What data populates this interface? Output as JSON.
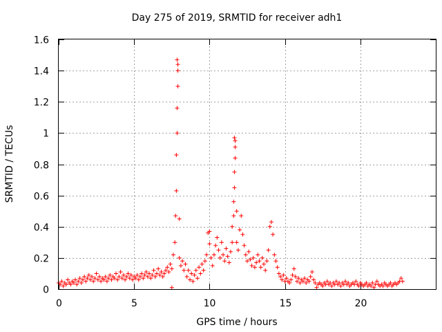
{
  "chart_data": {
    "type": "scatter",
    "title": "Day 275 of 2019, SRMTID for receiver adh1",
    "xlabel": "GPS time / hours",
    "ylabel": "SRMTID / TECUs",
    "xlim": [
      0,
      25
    ],
    "ylim": [
      0,
      1.6
    ],
    "xticks": [
      0,
      5,
      10,
      15,
      20
    ],
    "yticks": [
      0,
      0.2,
      0.4,
      0.6,
      0.8,
      1,
      1.2,
      1.4,
      1.6
    ],
    "grid": true,
    "marker": "+",
    "color": "#ff0000",
    "series": [
      {
        "name": "adh1",
        "points": [
          [
            0.0,
            0.04
          ],
          [
            0.1,
            0.03
          ],
          [
            0.2,
            0.05
          ],
          [
            0.3,
            0.02
          ],
          [
            0.4,
            0.04
          ],
          [
            0.5,
            0.03
          ],
          [
            0.6,
            0.06
          ],
          [
            0.7,
            0.04
          ],
          [
            0.8,
            0.03
          ],
          [
            0.9,
            0.05
          ],
          [
            1.0,
            0.04
          ],
          [
            1.1,
            0.06
          ],
          [
            1.2,
            0.03
          ],
          [
            1.3,
            0.05
          ],
          [
            1.4,
            0.07
          ],
          [
            1.5,
            0.04
          ],
          [
            1.6,
            0.06
          ],
          [
            1.7,
            0.08
          ],
          [
            1.8,
            0.05
          ],
          [
            1.9,
            0.07
          ],
          [
            2.0,
            0.09
          ],
          [
            2.1,
            0.06
          ],
          [
            2.2,
            0.08
          ],
          [
            2.3,
            0.05
          ],
          [
            2.4,
            0.07
          ],
          [
            2.5,
            0.1
          ],
          [
            2.6,
            0.06
          ],
          [
            2.7,
            0.08
          ],
          [
            2.8,
            0.05
          ],
          [
            2.9,
            0.07
          ],
          [
            3.0,
            0.06
          ],
          [
            3.1,
            0.08
          ],
          [
            3.2,
            0.05
          ],
          [
            3.3,
            0.07
          ],
          [
            3.4,
            0.09
          ],
          [
            3.5,
            0.06
          ],
          [
            3.6,
            0.08
          ],
          [
            3.7,
            0.07
          ],
          [
            3.8,
            0.1
          ],
          [
            3.9,
            0.06
          ],
          [
            4.0,
            0.08
          ],
          [
            4.1,
            0.11
          ],
          [
            4.2,
            0.07
          ],
          [
            4.3,
            0.09
          ],
          [
            4.4,
            0.06
          ],
          [
            4.5,
            0.08
          ],
          [
            4.6,
            0.1
          ],
          [
            4.7,
            0.07
          ],
          [
            4.8,
            0.09
          ],
          [
            4.9,
            0.06
          ],
          [
            5.0,
            0.08
          ],
          [
            5.1,
            0.07
          ],
          [
            5.2,
            0.09
          ],
          [
            5.3,
            0.06
          ],
          [
            5.4,
            0.08
          ],
          [
            5.5,
            0.1
          ],
          [
            5.6,
            0.07
          ],
          [
            5.7,
            0.09
          ],
          [
            5.8,
            0.11
          ],
          [
            5.9,
            0.08
          ],
          [
            6.0,
            0.1
          ],
          [
            6.1,
            0.07
          ],
          [
            6.2,
            0.09
          ],
          [
            6.3,
            0.12
          ],
          [
            6.4,
            0.08
          ],
          [
            6.5,
            0.1
          ],
          [
            6.6,
            0.13
          ],
          [
            6.7,
            0.09
          ],
          [
            6.8,
            0.11
          ],
          [
            6.9,
            0.08
          ],
          [
            7.0,
            0.1
          ],
          [
            7.1,
            0.12
          ],
          [
            7.2,
            0.14
          ],
          [
            7.3,
            0.11
          ],
          [
            7.4,
            0.16
          ],
          [
            7.5,
            0.13
          ],
          [
            7.5,
            0.01
          ],
          [
            7.6,
            0.22
          ],
          [
            7.7,
            0.3
          ],
          [
            7.75,
            0.47
          ],
          [
            7.8,
            0.63
          ],
          [
            7.8,
            0.86
          ],
          [
            7.85,
            1.0
          ],
          [
            7.85,
            1.16
          ],
          [
            7.9,
            1.3
          ],
          [
            7.9,
            1.4
          ],
          [
            7.85,
            1.47
          ],
          [
            7.9,
            1.44
          ],
          [
            8.0,
            0.45
          ],
          [
            8.0,
            0.2
          ],
          [
            8.1,
            0.15
          ],
          [
            8.2,
            0.18
          ],
          [
            8.3,
            0.12
          ],
          [
            8.4,
            0.16
          ],
          [
            8.5,
            0.08
          ],
          [
            8.6,
            0.12
          ],
          [
            8.7,
            0.06
          ],
          [
            8.8,
            0.1
          ],
          [
            8.9,
            0.05
          ],
          [
            9.0,
            0.09
          ],
          [
            9.1,
            0.12
          ],
          [
            9.2,
            0.07
          ],
          [
            9.3,
            0.14
          ],
          [
            9.4,
            0.1
          ],
          [
            9.5,
            0.16
          ],
          [
            9.6,
            0.12
          ],
          [
            9.7,
            0.18
          ],
          [
            9.8,
            0.22
          ],
          [
            9.9,
            0.36
          ],
          [
            10.0,
            0.37
          ],
          [
            10.0,
            0.29
          ],
          [
            10.1,
            0.2
          ],
          [
            10.2,
            0.15
          ],
          [
            10.3,
            0.22
          ],
          [
            10.4,
            0.28
          ],
          [
            10.5,
            0.33
          ],
          [
            10.6,
            0.25
          ],
          [
            10.7,
            0.2
          ],
          [
            10.8,
            0.3
          ],
          [
            10.9,
            0.22
          ],
          [
            11.0,
            0.18
          ],
          [
            11.1,
            0.26
          ],
          [
            11.2,
            0.21
          ],
          [
            11.3,
            0.17
          ],
          [
            11.4,
            0.24
          ],
          [
            11.5,
            0.3
          ],
          [
            11.5,
            0.4
          ],
          [
            11.6,
            0.47
          ],
          [
            11.6,
            0.56
          ],
          [
            11.65,
            0.65
          ],
          [
            11.65,
            0.75
          ],
          [
            11.7,
            0.84
          ],
          [
            11.7,
            0.91
          ],
          [
            11.65,
            0.97
          ],
          [
            11.7,
            0.95
          ],
          [
            11.8,
            0.5
          ],
          [
            11.8,
            0.3
          ],
          [
            11.9,
            0.25
          ],
          [
            12.0,
            0.38
          ],
          [
            12.1,
            0.47
          ],
          [
            12.2,
            0.35
          ],
          [
            12.3,
            0.28
          ],
          [
            12.4,
            0.22
          ],
          [
            12.5,
            0.18
          ],
          [
            12.6,
            0.24
          ],
          [
            12.7,
            0.19
          ],
          [
            12.8,
            0.15
          ],
          [
            12.9,
            0.2
          ],
          [
            13.0,
            0.14
          ],
          [
            13.1,
            0.17
          ],
          [
            13.2,
            0.22
          ],
          [
            13.3,
            0.18
          ],
          [
            13.4,
            0.14
          ],
          [
            13.5,
            0.2
          ],
          [
            13.6,
            0.16
          ],
          [
            13.7,
            0.12
          ],
          [
            13.8,
            0.18
          ],
          [
            13.9,
            0.25
          ],
          [
            14.0,
            0.4
          ],
          [
            14.1,
            0.43
          ],
          [
            14.2,
            0.35
          ],
          [
            14.3,
            0.22
          ],
          [
            14.4,
            0.18
          ],
          [
            14.5,
            0.14
          ],
          [
            14.6,
            0.1
          ],
          [
            14.7,
            0.08
          ],
          [
            14.8,
            0.06
          ],
          [
            14.9,
            0.09
          ],
          [
            15.0,
            0.05
          ],
          [
            15.1,
            0.07
          ],
          [
            15.2,
            0.05
          ],
          [
            15.3,
            0.04
          ],
          [
            15.4,
            0.06
          ],
          [
            15.5,
            0.09
          ],
          [
            15.6,
            0.13
          ],
          [
            15.7,
            0.08
          ],
          [
            15.8,
            0.05
          ],
          [
            15.9,
            0.07
          ],
          [
            16.0,
            0.04
          ],
          [
            16.1,
            0.06
          ],
          [
            16.2,
            0.05
          ],
          [
            16.3,
            0.07
          ],
          [
            16.4,
            0.04
          ],
          [
            16.5,
            0.06
          ],
          [
            16.6,
            0.05
          ],
          [
            16.7,
            0.08
          ],
          [
            16.8,
            0.11
          ],
          [
            16.9,
            0.06
          ],
          [
            17.0,
            0.04
          ],
          [
            17.1,
            0.01
          ],
          [
            17.2,
            0.03
          ],
          [
            17.3,
            0.04
          ],
          [
            17.4,
            0.03
          ],
          [
            17.5,
            0.02
          ],
          [
            17.6,
            0.04
          ],
          [
            17.7,
            0.03
          ],
          [
            17.8,
            0.05
          ],
          [
            17.9,
            0.03
          ],
          [
            18.0,
            0.04
          ],
          [
            18.1,
            0.02
          ],
          [
            18.2,
            0.04
          ],
          [
            18.3,
            0.03
          ],
          [
            18.4,
            0.05
          ],
          [
            18.5,
            0.03
          ],
          [
            18.6,
            0.04
          ],
          [
            18.7,
            0.02
          ],
          [
            18.8,
            0.04
          ],
          [
            18.9,
            0.03
          ],
          [
            19.0,
            0.05
          ],
          [
            19.1,
            0.03
          ],
          [
            19.2,
            0.04
          ],
          [
            19.3,
            0.02
          ],
          [
            19.4,
            0.03
          ],
          [
            19.5,
            0.04
          ],
          [
            19.6,
            0.03
          ],
          [
            19.7,
            0.05
          ],
          [
            19.8,
            0.03
          ],
          [
            19.9,
            0.02
          ],
          [
            20.0,
            0.04
          ],
          [
            20.1,
            0.03
          ],
          [
            20.2,
            0.02
          ],
          [
            20.3,
            0.03
          ],
          [
            20.4,
            0.04
          ],
          [
            20.5,
            0.02
          ],
          [
            20.6,
            0.03
          ],
          [
            20.7,
            0.02
          ],
          [
            20.8,
            0.04
          ],
          [
            20.9,
            0.01
          ],
          [
            21.0,
            0.03
          ],
          [
            21.1,
            0.05
          ],
          [
            21.2,
            0.03
          ],
          [
            21.3,
            0.02
          ],
          [
            21.4,
            0.03
          ],
          [
            21.5,
            0.02
          ],
          [
            21.6,
            0.04
          ],
          [
            21.7,
            0.03
          ],
          [
            21.8,
            0.02
          ],
          [
            21.9,
            0.03
          ],
          [
            22.0,
            0.04
          ],
          [
            22.1,
            0.02
          ],
          [
            22.2,
            0.03
          ],
          [
            22.3,
            0.04
          ],
          [
            22.4,
            0.03
          ],
          [
            22.5,
            0.04
          ],
          [
            22.6,
            0.05
          ],
          [
            22.7,
            0.07
          ],
          [
            22.8,
            0.05
          ]
        ]
      }
    ]
  }
}
